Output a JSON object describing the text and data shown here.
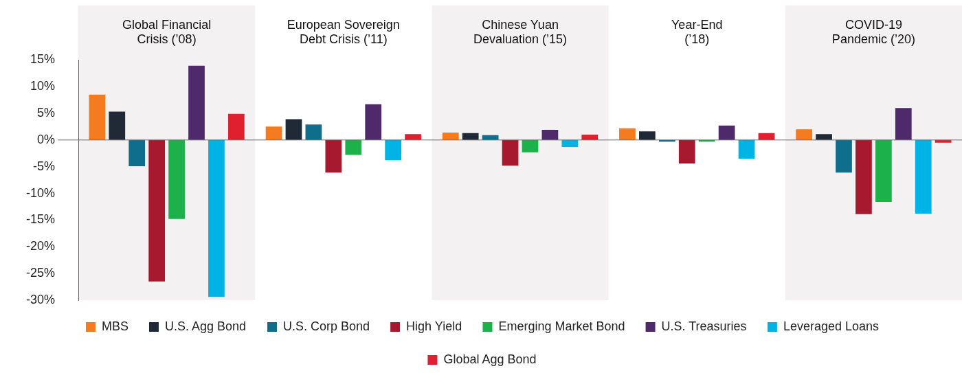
{
  "chart_data": {
    "type": "bar",
    "categories": [
      "Global Financial Crisis (’08)",
      "European Sovereign Debt Crisis (’11)",
      "Chinese Yuan Devaluation (’15)",
      "Year-End (’18)",
      "COVID-19 Pandemic (’20)"
    ],
    "series": [
      {
        "name": "MBS",
        "color": "#f47b20",
        "values": [
          8.5,
          2.5,
          1.4,
          2.2,
          2.0
        ]
      },
      {
        "name": "U.S. Agg Bond",
        "color": "#1f2a36",
        "values": [
          5.3,
          3.9,
          1.3,
          1.6,
          1.1
        ]
      },
      {
        "name": "U.S. Corp Bond",
        "color": "#0f6e8c",
        "values": [
          -4.9,
          2.9,
          0.9,
          -0.3,
          -6.1
        ]
      },
      {
        "name": "High Yield",
        "color": "#a6192e",
        "values": [
          -26.5,
          -6.1,
          -4.8,
          -4.4,
          -13.9
        ]
      },
      {
        "name": "Emerging Market Bond",
        "color": "#1db14b",
        "values": [
          -14.8,
          -2.8,
          -2.3,
          -0.3,
          -11.6
        ]
      },
      {
        "name": "U.S. Treasuries",
        "color": "#4e2a6b",
        "values": [
          13.9,
          6.7,
          1.9,
          2.7,
          6.0
        ]
      },
      {
        "name": "Leveraged Loans",
        "color": "#00b3e6",
        "values": [
          -29.4,
          -3.8,
          -1.3,
          -3.5,
          -13.8
        ]
      },
      {
        "name": "Global Agg Bond",
        "color": "#e0202f",
        "values": [
          4.9,
          1.1,
          1.0,
          1.3,
          -0.5
        ]
      }
    ],
    "ylim": [
      -30,
      15
    ],
    "yticks": [
      {
        "value": -30,
        "label": "-30%"
      },
      {
        "value": -25,
        "label": "-25%"
      },
      {
        "value": -20,
        "label": "-20%"
      },
      {
        "value": -15,
        "label": "-15%"
      },
      {
        "value": -10,
        "label": "-10%"
      },
      {
        "value": -5,
        "label": "-5%"
      },
      {
        "value": 0,
        "label": "0%"
      },
      {
        "value": 5,
        "label": "5%"
      },
      {
        "value": 10,
        "label": "10%"
      },
      {
        "value": 15,
        "label": "15%"
      }
    ],
    "ref_lines": [
      {
        "axis": "y",
        "value": 0,
        "color": "#666666"
      }
    ],
    "grid": false,
    "legend": "bottom"
  }
}
